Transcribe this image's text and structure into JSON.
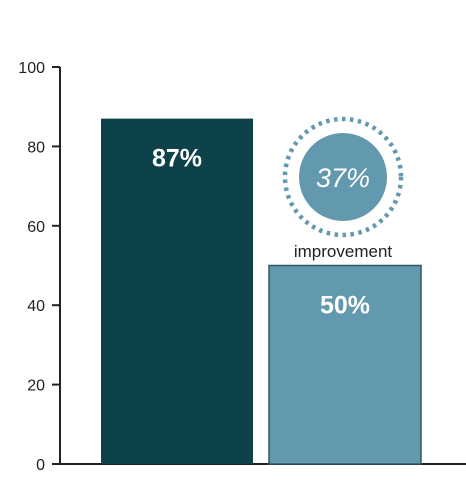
{
  "chart_data": {
    "type": "bar",
    "categories": [
      "",
      ""
    ],
    "values": [
      87,
      50
    ],
    "data_labels": [
      "87%",
      "50%"
    ],
    "colors": [
      "#0e424b",
      "#6399ae"
    ],
    "ylim": [
      0,
      100
    ],
    "yticks": [
      0,
      20,
      40,
      60,
      80,
      100
    ],
    "ytick_labels": [
      "0",
      "20",
      "40",
      "60",
      "80",
      "100"
    ],
    "grid": false,
    "annotation": {
      "value_text": "37%",
      "caption": "improvement",
      "color": "#6399ae",
      "near_category_index": 1
    }
  }
}
